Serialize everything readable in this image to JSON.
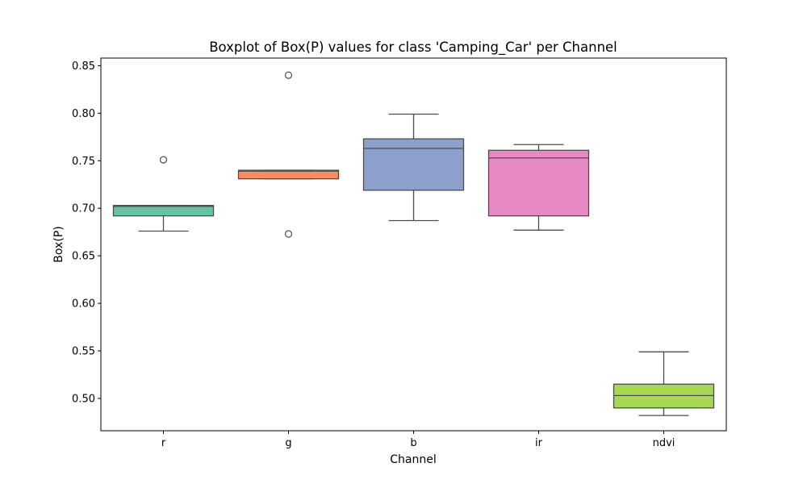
{
  "chart_data": {
    "type": "boxplot",
    "title": "Boxplot of Box(P) values for class 'Camping_Car' per Channel",
    "xlabel": "Channel",
    "ylabel": "Box(P)",
    "ylim": [
      0.466,
      0.858
    ],
    "yticks": [
      0.5,
      0.55,
      0.6,
      0.65,
      0.7,
      0.75,
      0.8,
      0.85
    ],
    "ytick_labels": [
      "0.50",
      "0.55",
      "0.60",
      "0.65",
      "0.70",
      "0.75",
      "0.80",
      "0.85"
    ],
    "grid": false,
    "categories": [
      "r",
      "g",
      "b",
      "ir",
      "ndvi"
    ],
    "boxes": [
      {
        "category": "r",
        "color": "#66c2a5",
        "whisker_low": 0.676,
        "q1": 0.692,
        "median": 0.702,
        "q3": 0.703,
        "whisker_high": 0.703,
        "outliers": [
          0.751
        ]
      },
      {
        "category": "g",
        "color": "#fc8d62",
        "whisker_low": 0.731,
        "q1": 0.731,
        "median": 0.739,
        "q3": 0.74,
        "whisker_high": 0.74,
        "outliers": [
          0.84,
          0.673
        ]
      },
      {
        "category": "b",
        "color": "#8da0cb",
        "whisker_low": 0.687,
        "q1": 0.719,
        "median": 0.763,
        "q3": 0.773,
        "whisker_high": 0.799,
        "outliers": []
      },
      {
        "category": "ir",
        "color": "#e78ac3",
        "whisker_low": 0.677,
        "q1": 0.692,
        "median": 0.753,
        "q3": 0.761,
        "whisker_high": 0.767,
        "outliers": []
      },
      {
        "category": "ndvi",
        "color": "#a6d854",
        "whisker_low": 0.482,
        "q1": 0.49,
        "median": 0.503,
        "q3": 0.515,
        "whisker_high": 0.549,
        "outliers": []
      }
    ]
  }
}
